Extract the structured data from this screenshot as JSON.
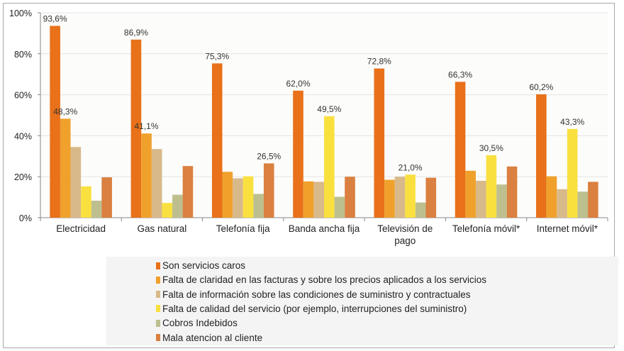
{
  "chart_data": {
    "type": "bar",
    "categories": [
      "Electricidad",
      "Gas natural",
      "Telefonía fija",
      "Banda ancha fija",
      "Televisión de pago",
      "Telefonía móvil*",
      "Internet móvil*"
    ],
    "category_lines": [
      [
        "Electricidad"
      ],
      [
        "Gas natural"
      ],
      [
        "Telefonía fija"
      ],
      [
        "Banda ancha fija"
      ],
      [
        "Televisión de",
        "pago"
      ],
      [
        "Telefonía móvil*"
      ],
      [
        "Internet móvil*"
      ]
    ],
    "series": [
      {
        "name": "Son servicios caros",
        "color": "#E8711A",
        "values": [
          93.6,
          86.9,
          75.3,
          62.0,
          72.8,
          66.3,
          60.2
        ],
        "labels": [
          "93,6%",
          "86,9%",
          "75,3%",
          "62,0%",
          "72,8%",
          "66,3%",
          "60,2%"
        ]
      },
      {
        "name": "Falta de claridad en las facturas y sobre los precios aplicados a los servicios",
        "color": "#F0A12C",
        "values": [
          48.3,
          41.1,
          22.4,
          17.7,
          18.5,
          22.9,
          20.2
        ],
        "labels": [
          "48,3%",
          "41,1%",
          null,
          null,
          null,
          null,
          null
        ]
      },
      {
        "name": "Falta de información sobre las condiciones de suministro y contractuales",
        "color": "#D8B98A",
        "values": [
          34.5,
          33.5,
          19.2,
          17.5,
          20.0,
          18.0,
          13.9
        ],
        "labels": [
          null,
          null,
          null,
          null,
          null,
          null,
          null
        ]
      },
      {
        "name": "Falta de calidad del servicio (por ejemplo, interrupciones del suministro)",
        "color": "#F9E03F",
        "values": [
          15.3,
          7.2,
          20.2,
          49.5,
          21.0,
          30.5,
          43.3
        ],
        "labels": [
          null,
          null,
          null,
          "49,5%",
          "21,0%",
          "30,5%",
          "43,3%"
        ]
      },
      {
        "name": "Cobros Indebidos",
        "color": "#BDBF8F",
        "values": [
          8.3,
          11.2,
          11.6,
          10.2,
          7.4,
          16.2,
          12.7
        ],
        "labels": [
          null,
          null,
          null,
          null,
          null,
          null,
          null
        ]
      },
      {
        "name": "Mala atencion al cliente",
        "color": "#DA8040",
        "values": [
          19.7,
          25.2,
          26.5,
          20.0,
          19.5,
          25.0,
          17.5
        ],
        "labels": [
          null,
          null,
          "26,5%",
          null,
          null,
          null,
          null
        ]
      }
    ],
    "yticks": [
      "0%",
      "20%",
      "40%",
      "60%",
      "80%",
      "100%"
    ],
    "ylim": [
      0,
      100
    ],
    "grid": true,
    "legend": "bottom",
    "xlabel": "",
    "ylabel": "",
    "title": ""
  }
}
